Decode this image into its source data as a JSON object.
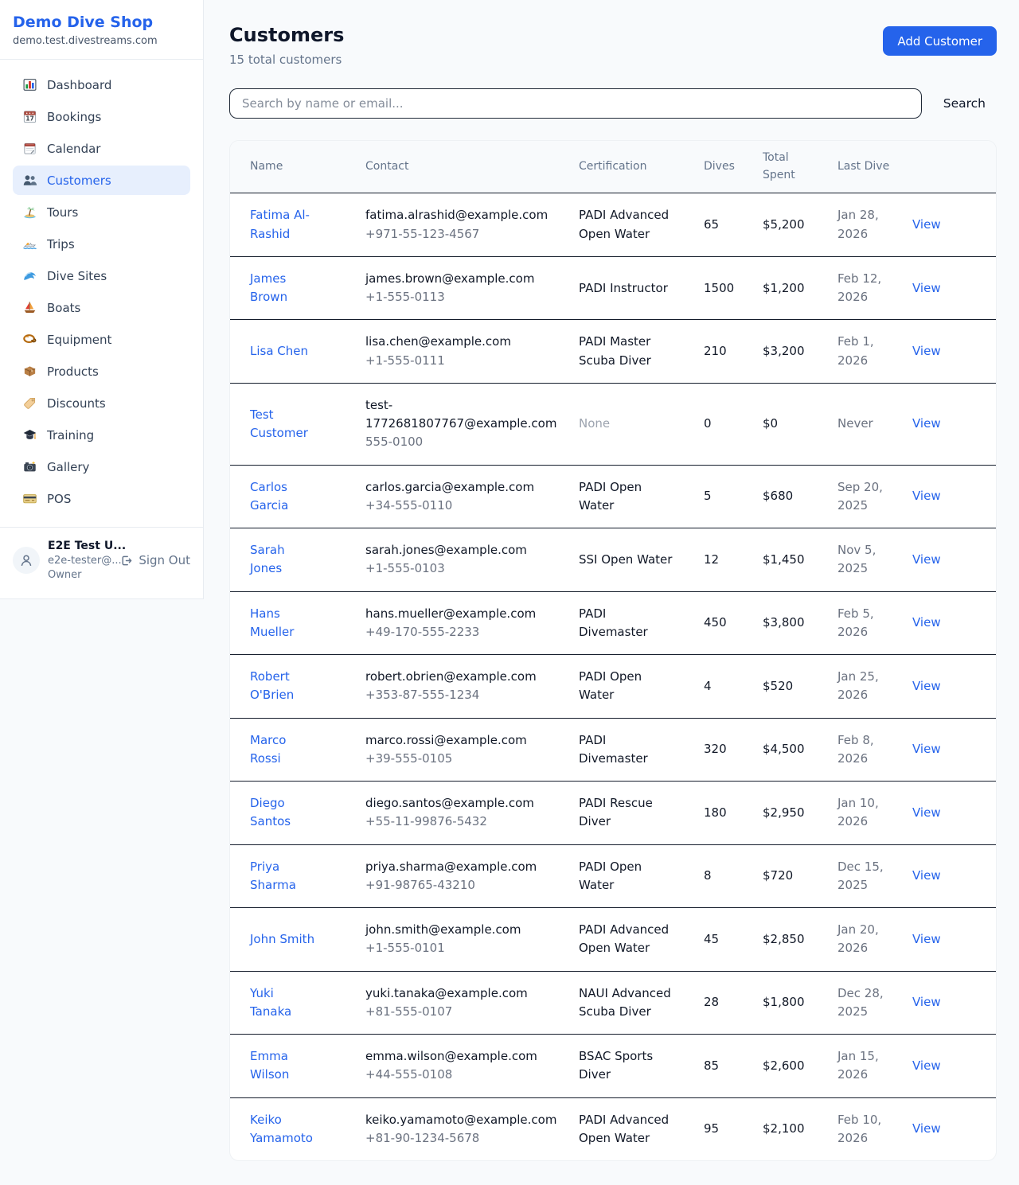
{
  "brand": {
    "name": "Demo Dive Shop",
    "domain": "demo.test.divestreams.com"
  },
  "sidebar": {
    "items": [
      {
        "label": "Dashboard",
        "icon": "dashboard-icon",
        "active": false
      },
      {
        "label": "Bookings",
        "icon": "bookings-icon",
        "active": false
      },
      {
        "label": "Calendar",
        "icon": "calendar-icon",
        "active": false
      },
      {
        "label": "Customers",
        "icon": "customers-icon",
        "active": true
      },
      {
        "label": "Tours",
        "icon": "tours-icon",
        "active": false
      },
      {
        "label": "Trips",
        "icon": "trips-icon",
        "active": false
      },
      {
        "label": "Dive Sites",
        "icon": "dive-sites-icon",
        "active": false
      },
      {
        "label": "Boats",
        "icon": "boats-icon",
        "active": false
      },
      {
        "label": "Equipment",
        "icon": "equipment-icon",
        "active": false
      },
      {
        "label": "Products",
        "icon": "products-icon",
        "active": false
      },
      {
        "label": "Discounts",
        "icon": "discounts-icon",
        "active": false
      },
      {
        "label": "Training",
        "icon": "training-icon",
        "active": false
      },
      {
        "label": "Gallery",
        "icon": "gallery-icon",
        "active": false
      },
      {
        "label": "POS",
        "icon": "pos-icon",
        "active": false
      }
    ],
    "user": {
      "name": "E2E Test U...",
      "email": "e2e-tester@...",
      "role": "Owner",
      "sign_out_label": "Sign Out"
    }
  },
  "header": {
    "title": "Customers",
    "subtitle": "15 total customers",
    "add_button": "Add Customer"
  },
  "search": {
    "placeholder": "Search by name or email...",
    "value": "",
    "button": "Search"
  },
  "table": {
    "columns": [
      "Name",
      "Contact",
      "Certification",
      "Dives",
      "Total Spent",
      "Last Dive",
      ""
    ],
    "view_label": "View",
    "rows": [
      {
        "name": "Fatima Al-Rashid",
        "email": "fatima.alrashid@example.com",
        "phone": "+971-55-123-4567",
        "certification": "PADI Advanced Open Water",
        "dives": "65",
        "total_spent": "$5,200",
        "last_dive": "Jan 28, 2026"
      },
      {
        "name": "James Brown",
        "email": "james.brown@example.com",
        "phone": "+1-555-0113",
        "certification": "PADI Instructor",
        "dives": "1500",
        "total_spent": "$1,200",
        "last_dive": "Feb 12, 2026"
      },
      {
        "name": "Lisa Chen",
        "email": "lisa.chen@example.com",
        "phone": "+1-555-0111",
        "certification": "PADI Master Scuba Diver",
        "dives": "210",
        "total_spent": "$3,200",
        "last_dive": "Feb 1, 2026"
      },
      {
        "name": "Test Customer",
        "email": "test-1772681807767@example.com",
        "phone": "555-0100",
        "certification": "None",
        "dives": "0",
        "total_spent": "$0",
        "last_dive": "Never"
      },
      {
        "name": "Carlos Garcia",
        "email": "carlos.garcia@example.com",
        "phone": "+34-555-0110",
        "certification": "PADI Open Water",
        "dives": "5",
        "total_spent": "$680",
        "last_dive": "Sep 20, 2025"
      },
      {
        "name": "Sarah Jones",
        "email": "sarah.jones@example.com",
        "phone": "+1-555-0103",
        "certification": "SSI Open Water",
        "dives": "12",
        "total_spent": "$1,450",
        "last_dive": "Nov 5, 2025"
      },
      {
        "name": "Hans Mueller",
        "email": "hans.mueller@example.com",
        "phone": "+49-170-555-2233",
        "certification": "PADI Divemaster",
        "dives": "450",
        "total_spent": "$3,800",
        "last_dive": "Feb 5, 2026"
      },
      {
        "name": "Robert O'Brien",
        "email": "robert.obrien@example.com",
        "phone": "+353-87-555-1234",
        "certification": "PADI Open Water",
        "dives": "4",
        "total_spent": "$520",
        "last_dive": "Jan 25, 2026"
      },
      {
        "name": "Marco Rossi",
        "email": "marco.rossi@example.com",
        "phone": "+39-555-0105",
        "certification": "PADI Divemaster",
        "dives": "320",
        "total_spent": "$4,500",
        "last_dive": "Feb 8, 2026"
      },
      {
        "name": "Diego Santos",
        "email": "diego.santos@example.com",
        "phone": "+55-11-99876-5432",
        "certification": "PADI Rescue Diver",
        "dives": "180",
        "total_spent": "$2,950",
        "last_dive": "Jan 10, 2026"
      },
      {
        "name": "Priya Sharma",
        "email": "priya.sharma@example.com",
        "phone": "+91-98765-43210",
        "certification": "PADI Open Water",
        "dives": "8",
        "total_spent": "$720",
        "last_dive": "Dec 15, 2025"
      },
      {
        "name": "John Smith",
        "email": "john.smith@example.com",
        "phone": "+1-555-0101",
        "certification": "PADI Advanced Open Water",
        "dives": "45",
        "total_spent": "$2,850",
        "last_dive": "Jan 20, 2026"
      },
      {
        "name": "Yuki Tanaka",
        "email": "yuki.tanaka@example.com",
        "phone": "+81-555-0107",
        "certification": "NAUI Advanced Scuba Diver",
        "dives": "28",
        "total_spent": "$1,800",
        "last_dive": "Dec 28, 2025"
      },
      {
        "name": "Emma Wilson",
        "email": "emma.wilson@example.com",
        "phone": "+44-555-0108",
        "certification": "BSAC Sports Diver",
        "dives": "85",
        "total_spent": "$2,600",
        "last_dive": "Jan 15, 2026"
      },
      {
        "name": "Keiko Yamamoto",
        "email": "keiko.yamamoto@example.com",
        "phone": "+81-90-1234-5678",
        "certification": "PADI Advanced Open Water",
        "dives": "95",
        "total_spent": "$2,100",
        "last_dive": "Feb 10, 2026"
      }
    ]
  },
  "colors": {
    "accent": "#2563eb",
    "accent_light_bg": "#e7effd",
    "page_bg": "#f8fafc",
    "row_border": "#141c2b",
    "muted_text": "#64748b",
    "faint_text": "#9ca3af"
  }
}
